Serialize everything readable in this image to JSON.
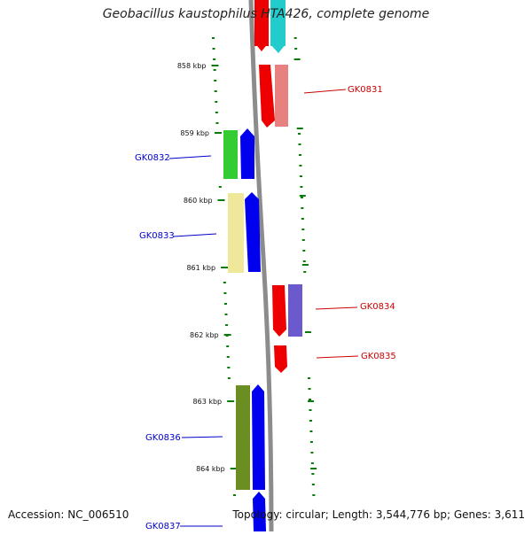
{
  "title": "Geobacillus kaustophilus HTA426, complete genome",
  "footer": {
    "accession": "Accession: NC_006510",
    "summary": "Topology: circular; Length: 3,544,776 bp; Genes: 3,611"
  },
  "ticks": [
    "858 kbp",
    "859 kbp",
    "860 kbp",
    "861 kbp",
    "862 kbp",
    "863 kbp",
    "864 kbp"
  ],
  "gene_labels": {
    "GK0831": "GK0831",
    "GK0832": "GK0832",
    "GK0833": "GK0833",
    "GK0834": "GK0834",
    "GK0835": "GK0835",
    "GK0836": "GK0836",
    "GK0837": "GK0837"
  },
  "colors": {
    "backbone": "#8c8c8c",
    "tick": "#0a7a0a",
    "forward_label": "#0000cc",
    "reverse_label": "#cc0000",
    "gene_blue": "#0000ee",
    "gene_red": "#ee0000",
    "cyan": "#22cccc",
    "salmon": "#e88080",
    "green": "#33cc33",
    "khaki": "#efe79a",
    "purple": "#6a5acd",
    "olive": "#6b8e23"
  }
}
